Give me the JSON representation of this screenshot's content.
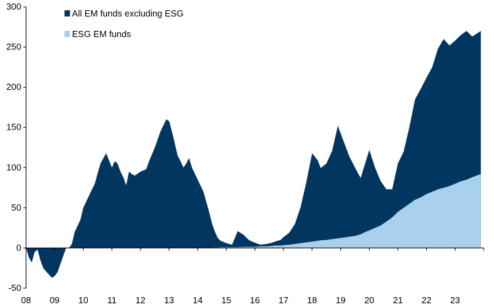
{
  "chart_data": {
    "type": "area",
    "stacked": true,
    "title": "",
    "xlabel": "",
    "ylabel": "",
    "ylim": [
      -50,
      300
    ],
    "yticks": [
      -50,
      0,
      50,
      100,
      150,
      200,
      250,
      300
    ],
    "xlim": [
      2008.0,
      2024.0
    ],
    "x_tick_labels": [
      "08",
      "09",
      "10",
      "11",
      "12",
      "13",
      "14",
      "15",
      "16",
      "17",
      "18",
      "19",
      "20",
      "21",
      "22",
      "23"
    ],
    "grid": false,
    "legend_position": "top-left",
    "x": [
      2008.0,
      2008.1,
      2008.2,
      2008.3,
      2008.4,
      2008.5,
      2008.6,
      2008.8,
      2008.9,
      2009.0,
      2009.1,
      2009.2,
      2009.3,
      2009.4,
      2009.5,
      2009.6,
      2009.7,
      2009.9,
      2010.0,
      2010.2,
      2010.4,
      2010.6,
      2010.8,
      2011.0,
      2011.1,
      2011.2,
      2011.3,
      2011.4,
      2011.5,
      2011.6,
      2011.7,
      2011.8,
      2012.0,
      2012.2,
      2012.3,
      2012.5,
      2012.7,
      2012.9,
      2013.0,
      2013.1,
      2013.2,
      2013.3,
      2013.4,
      2013.5,
      2013.6,
      2013.7,
      2013.8,
      2014.0,
      2014.2,
      2014.4,
      2014.5,
      2014.6,
      2014.7,
      2014.8,
      2015.0,
      2015.2,
      2015.4,
      2015.6,
      2015.8,
      2016.0,
      2016.2,
      2016.4,
      2016.6,
      2016.7,
      2016.9,
      2017.0,
      2017.2,
      2017.4,
      2017.6,
      2017.8,
      2018.0,
      2018.2,
      2018.3,
      2018.5,
      2018.7,
      2018.9,
      2019.1,
      2019.3,
      2019.5,
      2019.7,
      2019.8,
      2020.0,
      2020.2,
      2020.4,
      2020.6,
      2020.8,
      2021.0,
      2021.2,
      2021.4,
      2021.6,
      2021.8,
      2022.0,
      2022.2,
      2022.4,
      2022.6,
      2022.8,
      2023.0,
      2023.2,
      2023.4,
      2023.6,
      2023.9
    ],
    "series": [
      {
        "name": "All EM funds excluding ESG",
        "color": "#003660",
        "values": [
          0,
          -12,
          -18,
          -5,
          -2,
          -15,
          -25,
          -33,
          -37,
          -35,
          -30,
          -20,
          -10,
          0,
          0,
          5,
          20,
          35,
          50,
          65,
          80,
          105,
          118,
          100,
          108,
          105,
          95,
          88,
          78,
          95,
          92,
          90,
          95,
          98,
          108,
          125,
          145,
          160,
          158,
          145,
          130,
          115,
          108,
          100,
          105,
          112,
          100,
          85,
          70,
          45,
          30,
          20,
          12,
          8,
          5,
          3,
          20,
          15,
          8,
          5,
          2,
          3,
          4,
          5,
          7,
          10,
          15,
          25,
          45,
          75,
          110,
          100,
          90,
          95,
          110,
          140,
          120,
          100,
          85,
          70,
          80,
          100,
          75,
          55,
          40,
          35,
          60,
          70,
          95,
          125,
          135,
          145,
          155,
          175,
          185,
          175,
          178,
          182,
          185,
          175,
          178
        ],
        "note": ""
      },
      {
        "name": "ESG EM funds",
        "color": "#a9d0ec",
        "values": [
          0,
          0,
          0,
          0,
          0,
          0,
          0,
          0,
          0,
          0,
          0,
          0,
          0,
          0,
          0,
          0,
          0,
          0,
          0,
          0,
          0,
          0,
          0,
          0,
          0,
          0,
          0,
          0,
          0,
          0,
          0,
          0,
          0,
          0,
          0,
          0,
          0,
          0,
          0,
          0,
          0,
          0,
          0,
          0,
          0,
          0,
          0,
          0,
          0,
          0,
          0.5,
          0.5,
          0.5,
          1,
          1,
          1,
          1,
          1.5,
          1.5,
          1.5,
          2,
          2,
          2.5,
          3,
          3,
          3.5,
          4,
          5,
          6,
          7,
          8,
          9,
          9.5,
          10,
          11,
          12,
          13,
          14,
          15,
          17,
          19,
          22,
          25,
          28,
          33,
          38,
          45,
          50,
          55,
          60,
          63,
          67,
          70,
          73,
          75,
          77,
          80,
          83,
          85,
          88,
          92
        ]
      }
    ]
  }
}
